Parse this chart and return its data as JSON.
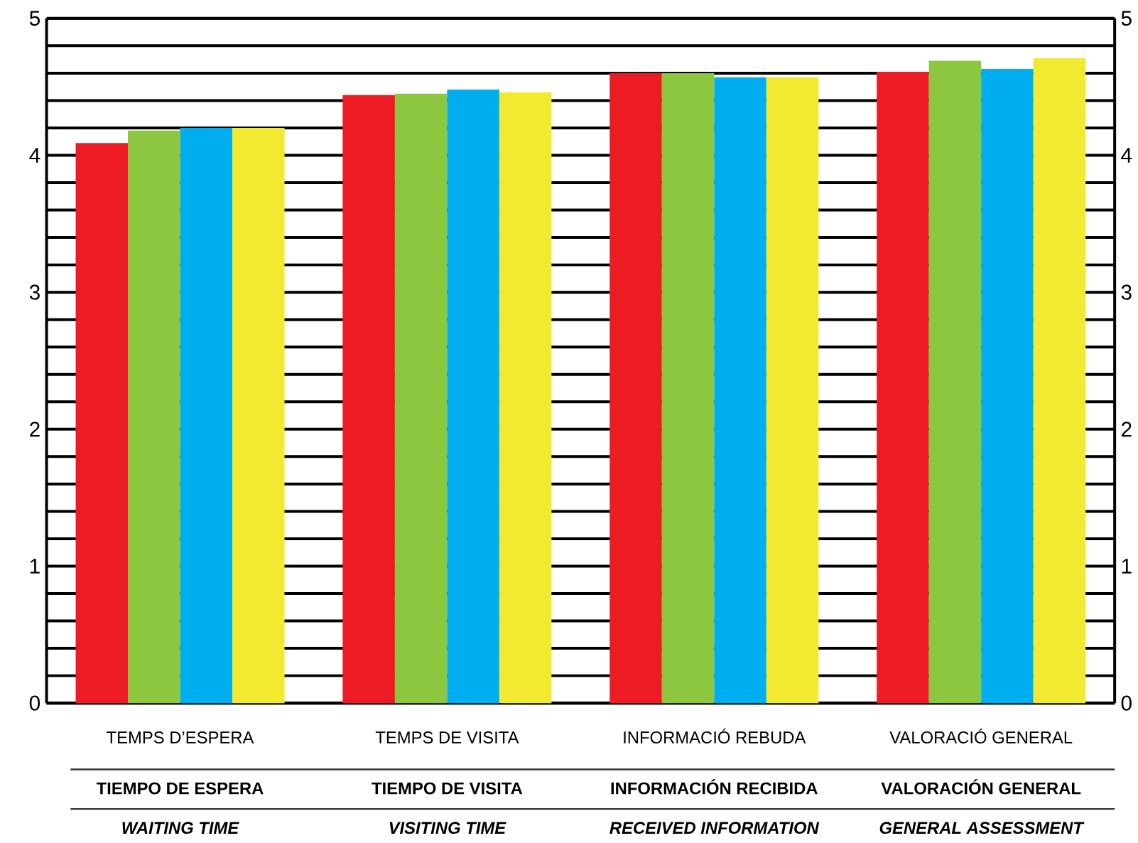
{
  "chart_data": {
    "type": "bar",
    "categories": [
      "TEMPS D’ESPERA",
      "TEMPS DE VISITA",
      "INFORMACIÓ REBUDA",
      "VALORACIÓ GENERAL"
    ],
    "series": [
      {
        "color": "#ed1c24",
        "values": [
          4.09,
          4.44,
          4.6,
          4.61
        ]
      },
      {
        "color": "#8dc63f",
        "values": [
          4.18,
          4.45,
          4.6,
          4.69
        ]
      },
      {
        "color": "#00aeef",
        "values": [
          4.2,
          4.48,
          4.57,
          4.63
        ]
      },
      {
        "color": "#f2ea31",
        "values": [
          4.2,
          4.46,
          4.57,
          4.71
        ]
      }
    ],
    "ylim": [
      0,
      5
    ],
    "yticks": [
      0,
      {
        "value": 0.2,
        "label": null
      },
      {
        "value": 0.4,
        "label": null
      },
      {
        "value": 0.6,
        "label": null
      },
      {
        "value": 0.8,
        "label": null
      },
      1,
      {
        "value": 1.2,
        "label": null
      },
      {
        "value": 1.4,
        "label": null
      },
      {
        "value": 1.6,
        "label": null
      },
      {
        "value": 1.8,
        "label": null
      },
      2,
      {
        "value": 2.2,
        "label": null
      },
      {
        "value": 2.4,
        "label": null
      },
      {
        "value": 2.6,
        "label": null
      },
      {
        "value": 2.8,
        "label": null
      },
      3,
      {
        "value": 3.2,
        "label": null
      },
      {
        "value": 3.4,
        "label": null
      },
      {
        "value": 3.6,
        "label": null
      },
      {
        "value": 3.8,
        "label": null
      },
      4,
      {
        "value": 4.2,
        "label": null
      },
      {
        "value": 4.4,
        "label": null
      },
      {
        "value": 4.6,
        "label": null
      },
      {
        "value": 4.8,
        "label": null
      },
      5
    ],
    "y2lim": [
      0,
      5
    ],
    "y2ticks": [
      0,
      1,
      2,
      3,
      4,
      5
    ],
    "grid": true,
    "annotations": [
      "TIEMPO DE ESPERA",
      "TIEMPO DE VISITA",
      "INFORMACIÓN RECIBIDA",
      "VALORACIÓN GENERAL",
      "WAITING TIME",
      "VISITING TIME",
      "RECEIVED INFORMATION",
      "GENERAL ASSESSMENT"
    ]
  }
}
